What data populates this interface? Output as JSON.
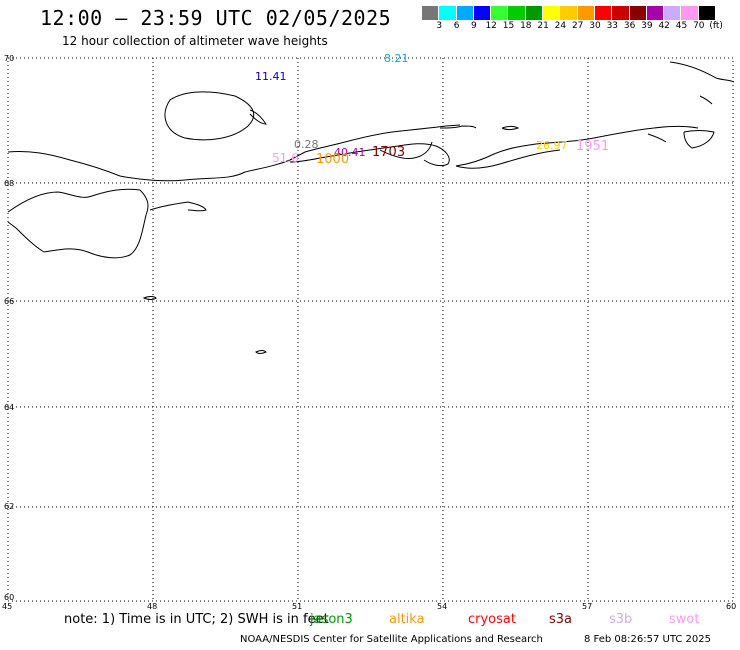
{
  "header": {
    "title": "12:00 – 23:59 UTC 02/05/2025",
    "subtitle": "12 hour collection of altimeter wave heights"
  },
  "colorbar": {
    "colors": [
      "#777777",
      "#00ffff",
      "#00aaff",
      "#0000ff",
      "#33ff33",
      "#00cc00",
      "#009900",
      "#ffff00",
      "#ffcc00",
      "#ff9900",
      "#ff0000",
      "#cc0000",
      "#880000",
      "#aa00aa",
      "#ccaaff",
      "#ff99ee",
      "#000000"
    ],
    "labels": [
      "3",
      "6",
      "9",
      "12",
      "15",
      "18",
      "21",
      "24",
      "27",
      "30",
      "33",
      "36",
      "39",
      "42",
      "45",
      "70",
      "(ft)"
    ]
  },
  "map": {
    "lat_ticks": [
      "70",
      "68",
      "66",
      "64",
      "62",
      "60"
    ],
    "lon_ticks": [
      "45",
      "48",
      "51",
      "54",
      "57",
      "60"
    ],
    "observations": [
      {
        "text": "11.41",
        "color": "#0000cc"
      },
      {
        "text": "8.21",
        "color": "#00aaff"
      },
      {
        "text": "0.28",
        "color": "#777777"
      },
      {
        "text": "40.41",
        "color": "#aa00aa"
      },
      {
        "text": "51.6",
        "color": "#ff99ee"
      },
      {
        "text": "1000",
        "color": "#ff9900"
      },
      {
        "text": "1703",
        "color": "#880000"
      },
      {
        "text": "26.97",
        "color": "#ffcc00"
      },
      {
        "text": "1951",
        "color": "#ff99ee"
      }
    ]
  },
  "footer": {
    "note": "note: 1) Time is in UTC; 2) SWH is in feet",
    "legend": [
      {
        "name": "jason3",
        "color": "#009900"
      },
      {
        "name": "altika",
        "color": "#ff9900"
      },
      {
        "name": "cryosat",
        "color": "#ff0000"
      },
      {
        "name": "s3a",
        "color": "#880000"
      },
      {
        "name": "s3b",
        "color": "#ccaaff"
      },
      {
        "name": "swot",
        "color": "#ff99ee"
      }
    ],
    "credit": "NOAA/NESDIS Center for Satellite Applications and Research",
    "timestamp": "8 Feb 08:26:57 UTC 2025"
  }
}
